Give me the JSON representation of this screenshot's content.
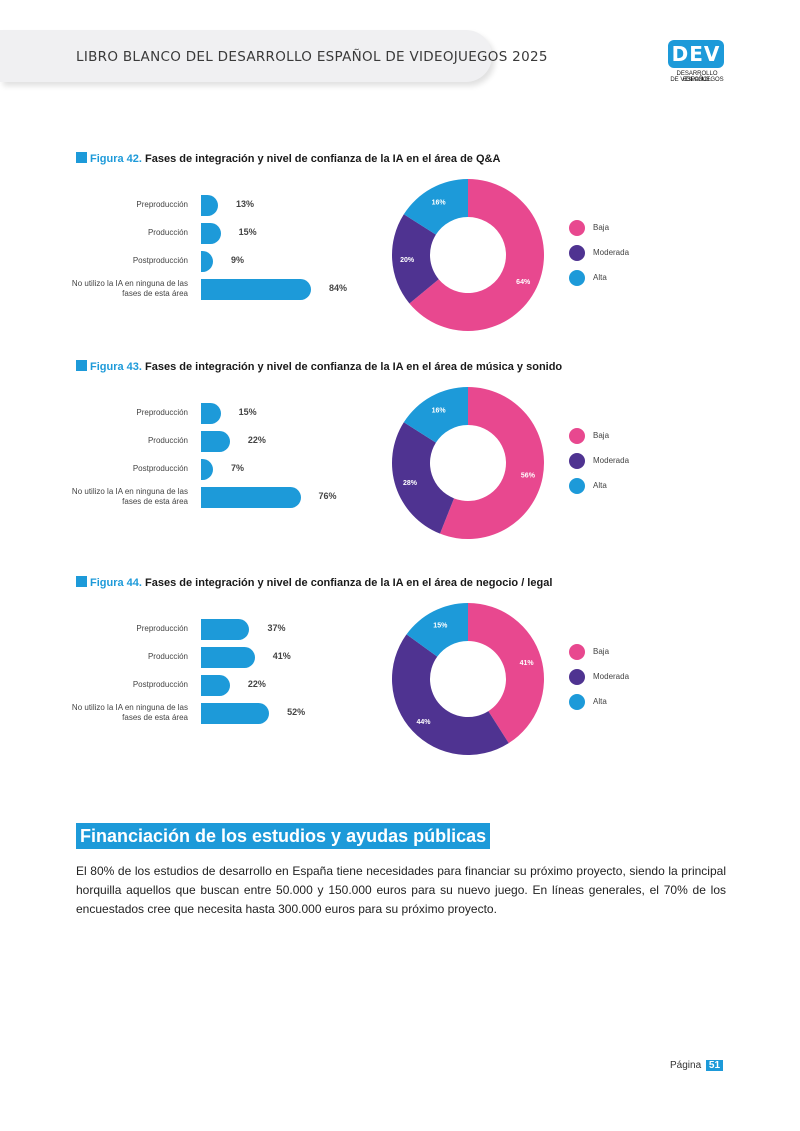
{
  "header": {
    "title": "LIBRO BLANCO DEL DESARROLLO ESPAÑOL DE VIDEOJUEGOS 2025",
    "logo_text": "DEV",
    "logo_sub1": "DESARROLLO ESPAÑOL",
    "logo_sub2": "DE VIDEOJUEGOS"
  },
  "colors": {
    "accent": "#1d9ad9",
    "baja": "#e8488f",
    "moderada": "#4f3391",
    "alta": "#1d9ad9"
  },
  "legend": [
    "Baja",
    "Moderada",
    "Alta"
  ],
  "figures": [
    {
      "num": "Figura 42.",
      "title": "Fases de integración y nivel de confianza de la IA en el área de Q&A",
      "phase_labels": [
        "Preproducción",
        "Producción",
        "Postproducción",
        "No utilizo la IA en ninguna de las",
        "fases de esta área"
      ],
      "phase_values": [
        "13%",
        "15%",
        "9%",
        "84%"
      ],
      "donut_labels": [
        "64%",
        "20%",
        "16%"
      ]
    },
    {
      "num": "Figura 43.",
      "title": "Fases de integración y nivel de confianza de la IA en el área de música y sonido",
      "phase_labels": [
        "Preproducción",
        "Producción",
        "Postproducción",
        "No utilizo la IA en ninguna de las",
        "fases de esta área"
      ],
      "phase_values": [
        "15%",
        "22%",
        "7%",
        "76%"
      ],
      "donut_labels": [
        "56%",
        "28%",
        "16%"
      ]
    },
    {
      "num": "Figura 44.",
      "title": "Fases de integración y nivel de confianza de la IA en el área de negocio / legal",
      "phase_labels": [
        "Preproducción",
        "Producción",
        "Postproducción",
        "No utilizo la IA en ninguna de las",
        "fases de esta área"
      ],
      "phase_values": [
        "37%",
        "41%",
        "22%",
        "52%"
      ],
      "donut_labels": [
        "41%",
        "44%",
        "15%"
      ]
    }
  ],
  "chart_data": [
    {
      "type": "bar",
      "categories": [
        "Preproducción",
        "Producción",
        "Postproducción",
        "No utilizo la IA en ninguna de las fases de esta área"
      ],
      "values": [
        13,
        15,
        9,
        84
      ]
    },
    {
      "type": "pie",
      "categories": [
        "Baja",
        "Moderada",
        "Alta"
      ],
      "values": [
        64,
        20,
        16
      ]
    },
    {
      "type": "bar",
      "categories": [
        "Preproducción",
        "Producción",
        "Postproducción",
        "No utilizo la IA en ninguna de las fases de esta área"
      ],
      "values": [
        15,
        22,
        7,
        76
      ]
    },
    {
      "type": "pie",
      "categories": [
        "Baja",
        "Moderada",
        "Alta"
      ],
      "values": [
        56,
        28,
        16
      ]
    },
    {
      "type": "bar",
      "categories": [
        "Preproducción",
        "Producción",
        "Postproducción",
        "No utilizo la IA en ninguna de las fases de esta área"
      ],
      "values": [
        37,
        41,
        22,
        52
      ]
    },
    {
      "type": "pie",
      "categories": [
        "Baja",
        "Moderada",
        "Alta"
      ],
      "values": [
        41,
        44,
        15
      ]
    }
  ],
  "section": {
    "title": "Financiación de los estudios y ayudas públicas",
    "body": "El 80% de los estudios de desarrollo en España tiene necesidades para financiar su próximo proyecto, siendo la principal horquilla aquellos que buscan entre 50.000 y 150.000 euros para su nuevo juego. En líneas generales, el 70% de los encuestados cree que necesita hasta 300.000 euros para su próximo proyecto."
  },
  "footer": {
    "page_label": "Página",
    "page_number": "51"
  }
}
